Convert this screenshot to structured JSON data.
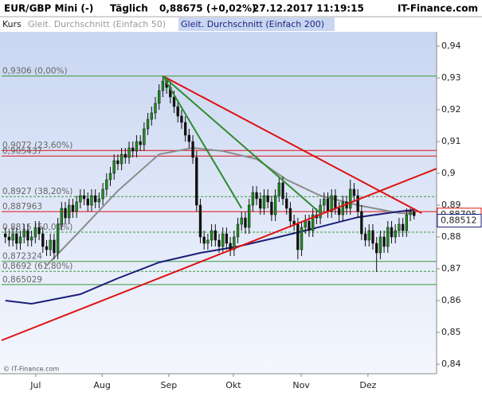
{
  "chart_data": {
    "type": "candlestick",
    "header": {
      "symbol": "EUR/GBP Mini (-)",
      "period": "Täglich",
      "price": "0,88675 (+0,02%)",
      "timestamp": "27.12.2017 11:19:15",
      "brand": "IT-Finance.com"
    },
    "legend": [
      "Kurs",
      "Gleit. Durchschnitt (Einfach 50)",
      "Gleit. Durchschnitt (Einfach 200)"
    ],
    "copyright": "© IT-Finance.com",
    "up_color": "#1f8f1f",
    "down_color": "#111111",
    "open": [
      0.881,
      0.88,
      0.879,
      0.881,
      0.878,
      0.88,
      0.882,
      0.879,
      0.88,
      0.883,
      0.881,
      0.877,
      0.876,
      0.879,
      0.875,
      0.884,
      0.889,
      0.886,
      0.89,
      0.888,
      0.891,
      0.893,
      0.892,
      0.89,
      0.893,
      0.891,
      0.892,
      0.895,
      0.898,
      0.9,
      0.904,
      0.903,
      0.906,
      0.905,
      0.908,
      0.907,
      0.91,
      0.909,
      0.914,
      0.917,
      0.919,
      0.922,
      0.926,
      0.929,
      0.927,
      0.924,
      0.921,
      0.918,
      0.916,
      0.912,
      0.91,
      0.905,
      0.89,
      0.88,
      0.878,
      0.879,
      0.882,
      0.879,
      0.877,
      0.881,
      0.878,
      0.876,
      0.88,
      0.884,
      0.886,
      0.883,
      0.89,
      0.894,
      0.892,
      0.889,
      0.893,
      0.891,
      0.887,
      0.893,
      0.897,
      0.892,
      0.889,
      0.885,
      0.884,
      0.876,
      0.883,
      0.885,
      0.882,
      0.887,
      0.886,
      0.89,
      0.892,
      0.888,
      0.893,
      0.889,
      0.887,
      0.891,
      0.889,
      0.895,
      0.893,
      0.888,
      0.881,
      0.879,
      0.882,
      0.878,
      0.875,
      0.88,
      0.877,
      0.883,
      0.88,
      0.882,
      0.884,
      0.882,
      0.887,
      0.888
    ],
    "high": [
      0.883,
      0.882,
      0.883,
      0.883,
      0.882,
      0.884,
      0.884,
      0.882,
      0.885,
      0.885,
      0.883,
      0.879,
      0.881,
      0.881,
      0.886,
      0.891,
      0.891,
      0.892,
      0.892,
      0.893,
      0.895,
      0.895,
      0.894,
      0.895,
      0.895,
      0.894,
      0.897,
      0.9,
      0.902,
      0.906,
      0.906,
      0.908,
      0.908,
      0.91,
      0.91,
      0.912,
      0.912,
      0.916,
      0.919,
      0.921,
      0.924,
      0.928,
      0.9306,
      0.93,
      0.929,
      0.926,
      0.923,
      0.92,
      0.918,
      0.914,
      0.912,
      0.907,
      0.892,
      0.882,
      0.881,
      0.884,
      0.884,
      0.881,
      0.883,
      0.883,
      0.88,
      0.882,
      0.886,
      0.888,
      0.888,
      0.892,
      0.896,
      0.896,
      0.894,
      0.895,
      0.895,
      0.893,
      0.895,
      0.899,
      0.899,
      0.894,
      0.891,
      0.887,
      0.886,
      0.885,
      0.887,
      0.887,
      0.889,
      0.889,
      0.892,
      0.894,
      0.894,
      0.895,
      0.895,
      0.891,
      0.893,
      0.893,
      0.898,
      0.897,
      0.895,
      0.89,
      0.883,
      0.884,
      0.884,
      0.88,
      0.882,
      0.882,
      0.885,
      0.885,
      0.884,
      0.886,
      0.886,
      0.889,
      0.889,
      0.889
    ],
    "low": [
      0.878,
      0.877,
      0.877,
      0.876,
      0.876,
      0.878,
      0.877,
      0.877,
      0.878,
      0.879,
      0.875,
      0.874,
      0.874,
      0.873,
      0.873,
      0.882,
      0.884,
      0.884,
      0.886,
      0.886,
      0.889,
      0.89,
      0.888,
      0.888,
      0.889,
      0.889,
      0.89,
      0.893,
      0.896,
      0.898,
      0.901,
      0.901,
      0.903,
      0.903,
      0.905,
      0.905,
      0.907,
      0.907,
      0.912,
      0.915,
      0.917,
      0.92,
      0.924,
      0.925,
      0.922,
      0.919,
      0.916,
      0.914,
      0.91,
      0.908,
      0.903,
      0.888,
      0.878,
      0.876,
      0.876,
      0.877,
      0.877,
      0.875,
      0.875,
      0.876,
      0.874,
      0.874,
      0.878,
      0.882,
      0.881,
      0.881,
      0.888,
      0.89,
      0.887,
      0.887,
      0.889,
      0.885,
      0.885,
      0.891,
      0.89,
      0.887,
      0.883,
      0.882,
      0.873,
      0.874,
      0.881,
      0.88,
      0.88,
      0.884,
      0.884,
      0.888,
      0.886,
      0.886,
      0.887,
      0.885,
      0.885,
      0.887,
      0.887,
      0.891,
      0.886,
      0.879,
      0.877,
      0.877,
      0.876,
      0.869,
      0.873,
      0.875,
      0.875,
      0.878,
      0.878,
      0.88,
      0.88,
      0.88,
      0.885,
      0.8855
    ],
    "close": [
      0.88,
      0.879,
      0.881,
      0.878,
      0.88,
      0.882,
      0.879,
      0.88,
      0.883,
      0.881,
      0.877,
      0.876,
      0.879,
      0.875,
      0.884,
      0.889,
      0.886,
      0.89,
      0.888,
      0.891,
      0.893,
      0.892,
      0.89,
      0.893,
      0.891,
      0.892,
      0.895,
      0.898,
      0.9,
      0.904,
      0.903,
      0.906,
      0.905,
      0.908,
      0.907,
      0.91,
      0.909,
      0.914,
      0.917,
      0.919,
      0.922,
      0.926,
      0.929,
      0.927,
      0.924,
      0.921,
      0.918,
      0.916,
      0.912,
      0.91,
      0.905,
      0.89,
      0.88,
      0.878,
      0.879,
      0.882,
      0.879,
      0.877,
      0.881,
      0.878,
      0.876,
      0.88,
      0.884,
      0.886,
      0.883,
      0.89,
      0.894,
      0.892,
      0.889,
      0.893,
      0.891,
      0.887,
      0.893,
      0.897,
      0.892,
      0.889,
      0.885,
      0.884,
      0.876,
      0.883,
      0.885,
      0.882,
      0.887,
      0.886,
      0.89,
      0.892,
      0.888,
      0.893,
      0.889,
      0.887,
      0.891,
      0.889,
      0.895,
      0.893,
      0.888,
      0.881,
      0.879,
      0.882,
      0.878,
      0.875,
      0.88,
      0.877,
      0.883,
      0.88,
      0.882,
      0.884,
      0.882,
      0.887,
      0.888,
      0.8867
    ],
    "series": [
      {
        "name": "Gleit. Durchschnitt (Einfach 50)",
        "color": "#8c8c8c",
        "x": [
          11,
          20,
          30,
          41,
          50,
          58,
          67,
          75,
          84,
          94,
          105,
          109
        ],
        "values": [
          0.871,
          0.882,
          0.8945,
          0.906,
          0.908,
          0.907,
          0.9045,
          0.898,
          0.893,
          0.89,
          0.8875,
          0.8873
        ]
      },
      {
        "name": "Gleit. Durchschnitt (Einfach 200)",
        "color": "#1c1f7a",
        "x": [
          0,
          7,
          20,
          30,
          41,
          52,
          62,
          73,
          84,
          94,
          105,
          109
        ],
        "values": [
          0.86,
          0.859,
          0.862,
          0.867,
          0.872,
          0.875,
          0.877,
          0.88,
          0.8832,
          0.8862,
          0.888,
          0.8885
        ]
      }
    ],
    "trendlines": [
      {
        "color": "#e01010",
        "x": [
          -1,
          115
        ],
        "y": [
          0.8475,
          0.9015
        ]
      },
      {
        "color": "#e01010",
        "x": [
          42,
          111
        ],
        "y": [
          0.9306,
          0.8875
        ]
      },
      {
        "color": "#2e8b2e",
        "x": [
          42,
          63
        ],
        "y": [
          0.9306,
          0.889
        ]
      },
      {
        "color": "#2e8b2e",
        "x": [
          42,
          84
        ],
        "y": [
          0.9306,
          0.8875
        ]
      }
    ],
    "levels": [
      {
        "value": 0.9306,
        "label": "0,9306 (0,00%)",
        "color": "#3a9a3a",
        "dash": false
      },
      {
        "value": 0.9072,
        "label": "0,9072 (23,60%)",
        "color": "#e01010",
        "dash": false
      },
      {
        "value": 0.905437,
        "label": "0,905437",
        "color": "#e01010",
        "dash": false
      },
      {
        "value": 0.8927,
        "label": "0,8927 (38,20%)",
        "color": "#3a9a3a",
        "dash": true
      },
      {
        "value": 0.887963,
        "label": "0,887963",
        "color": "#e01010",
        "dash": false
      },
      {
        "value": 0.8815,
        "label": "0,8815 (50,00%)",
        "color": "#3a9a3a",
        "dash": true
      },
      {
        "value": 0.872324,
        "label": "0,872324",
        "color": "#3a9a3a",
        "dash": false
      },
      {
        "value": 0.8692,
        "label": "0,8692 (61,80%)",
        "color": "#3a9a3a",
        "dash": true
      },
      {
        "value": 0.865029,
        "label": "0,865029",
        "color": "#3a9a3a",
        "dash": false
      }
    ],
    "price_markers": [
      {
        "value": 0.88705,
        "label": "0,88705",
        "color": "#e01010"
      },
      {
        "value": 0.88512,
        "label": "0,88512",
        "color": "#1c1f7a"
      }
    ],
    "xlim": [
      -1,
      115
    ],
    "xticks": [
      {
        "value": 8.1,
        "label": "Jul"
      },
      {
        "value": 25.8,
        "label": "Aug"
      },
      {
        "value": 43.6,
        "label": "Sep"
      },
      {
        "value": 60.8,
        "label": "Okt"
      },
      {
        "value": 78.9,
        "label": "Nov"
      },
      {
        "value": 96.7,
        "label": "Dez"
      }
    ],
    "ylim": [
      0.837,
      0.9445
    ],
    "yticks": [
      {
        "value": 0.84,
        "label": "0,84"
      },
      {
        "value": 0.85,
        "label": "0,85"
      },
      {
        "value": 0.86,
        "label": "0,86"
      },
      {
        "value": 0.87,
        "label": "0,87"
      },
      {
        "value": 0.88,
        "label": "0,88"
      },
      {
        "value": 0.89,
        "label": "0,89"
      },
      {
        "value": 0.9,
        "label": "0,9"
      },
      {
        "value": 0.91,
        "label": "0,91"
      },
      {
        "value": 0.92,
        "label": "0,92"
      },
      {
        "value": 0.93,
        "label": "0,93"
      },
      {
        "value": 0.94,
        "label": "0,94"
      }
    ]
  }
}
